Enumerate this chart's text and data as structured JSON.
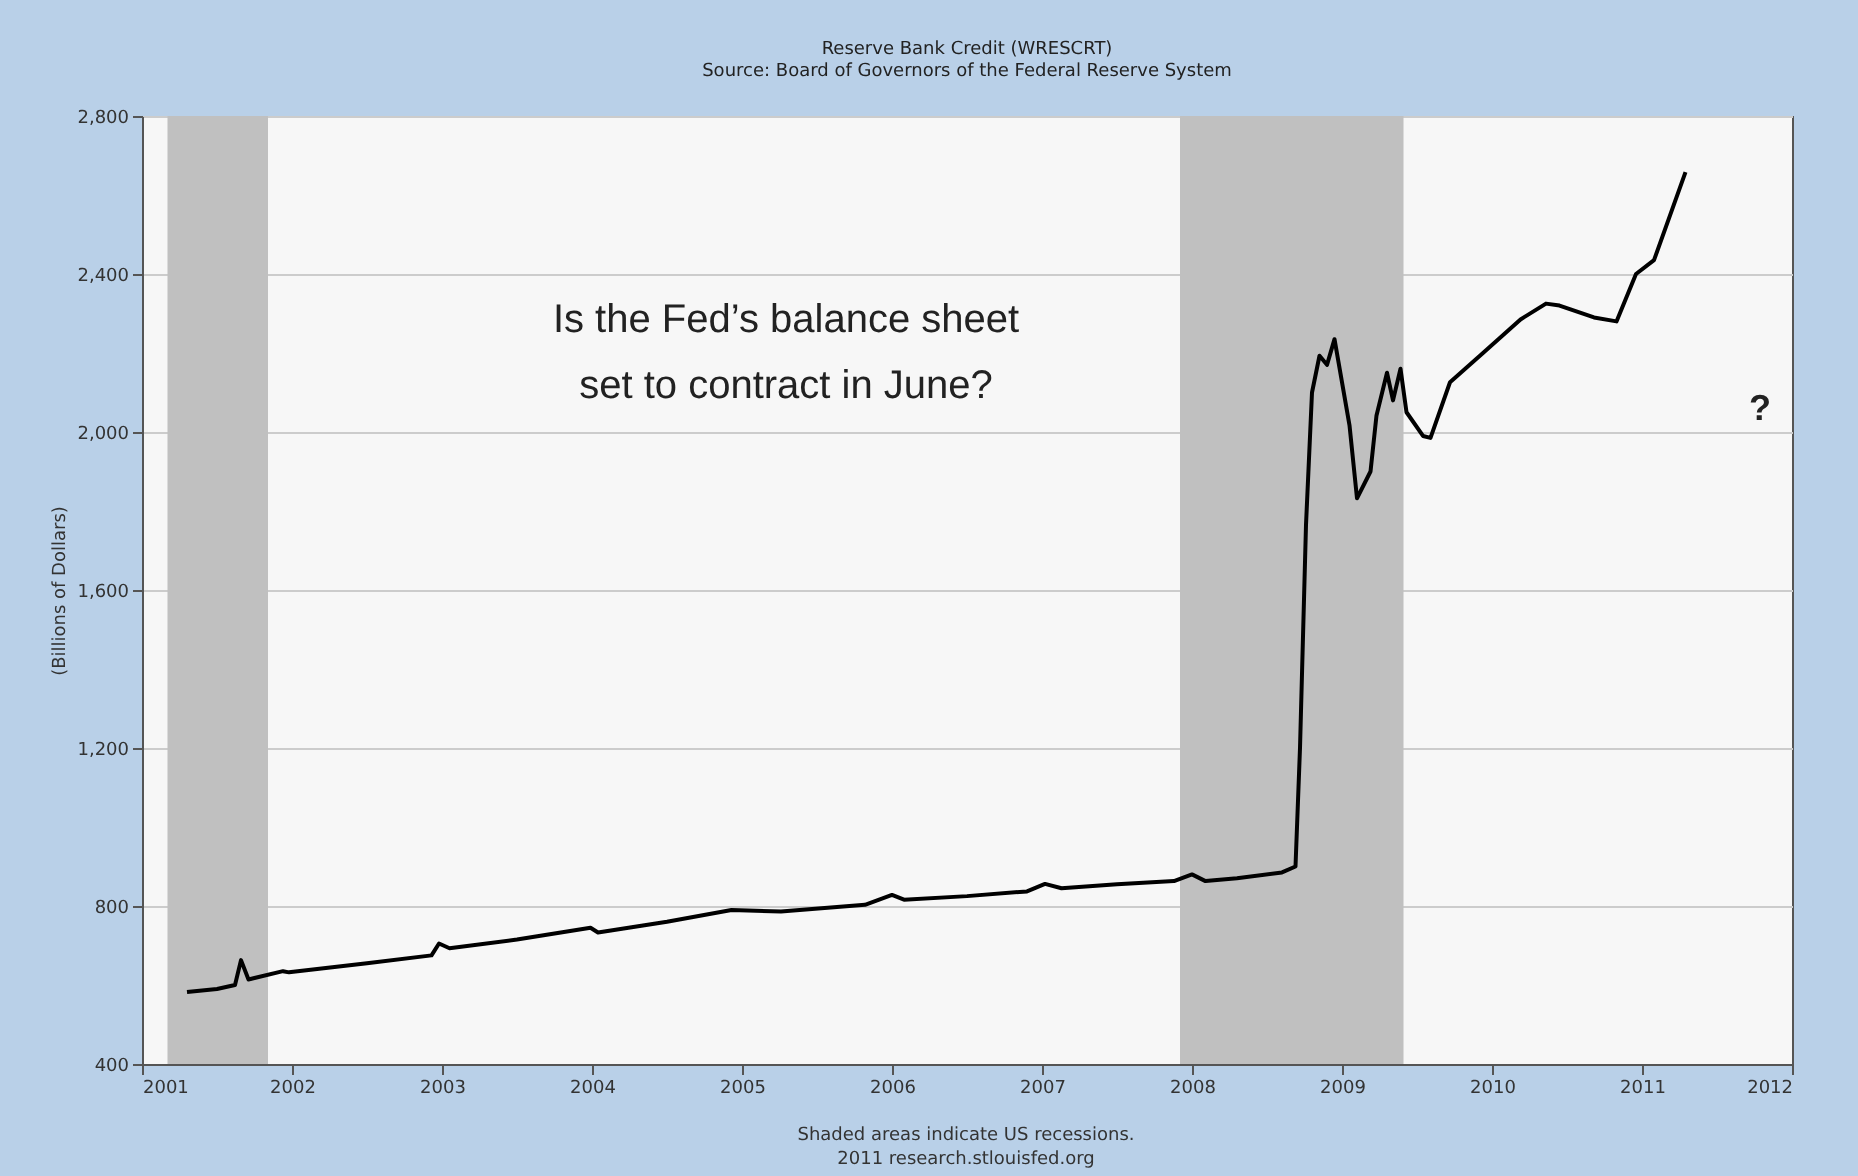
{
  "chart_data": {
    "type": "line",
    "title": "Reserve Bank Credit (WRESCRT)",
    "subtitle": "Source: Board of Governors of the Federal Reserve System",
    "ylabel": "(Billions of Dollars)",
    "x": [
      2001.3,
      2001.5,
      2001.62,
      2001.66,
      2001.71,
      2001.94,
      2001.98,
      2002.5,
      2002.93,
      2002.98,
      2003.05,
      2003.5,
      2003.99,
      2004.04,
      2004.5,
      2004.93,
      2005.26,
      2005.82,
      2006.0,
      2006.08,
      2006.5,
      2006.9,
      2007.02,
      2007.13,
      2007.5,
      2007.88,
      2008.0,
      2008.09,
      2008.3,
      2008.6,
      2008.69,
      2008.72,
      2008.76,
      2008.8,
      2008.85,
      2008.9,
      2008.95,
      2009.05,
      2009.1,
      2009.19,
      2009.23,
      2009.3,
      2009.34,
      2009.39,
      2009.43,
      2009.54,
      2009.59,
      2009.72,
      2009.94,
      2010.19,
      2010.36,
      2010.45,
      2010.68,
      2010.83,
      2010.96,
      2011.08,
      2011.29
    ],
    "values": [
      582,
      590,
      600,
      663,
      614,
      635,
      632,
      655,
      675,
      705,
      693,
      715,
      745,
      733,
      760,
      790,
      786,
      803,
      828,
      816,
      825,
      837,
      856,
      845,
      855,
      863,
      880,
      863,
      870,
      885,
      900,
      1200,
      1765,
      2100,
      2193,
      2170,
      2235,
      2017,
      1832,
      1900,
      2042,
      2150,
      2080,
      2160,
      2050,
      1990,
      1985,
      2126,
      2200,
      2285,
      2325,
      2320,
      2290,
      2280,
      2400,
      2435,
      2658
    ],
    "color": "#000000",
    "marker": "none",
    "line_style": "solid",
    "xlim": [
      2001,
      2012
    ],
    "xticks": [
      2001,
      2002,
      2003,
      2004,
      2005,
      2006,
      2007,
      2008,
      2009,
      2010,
      2011,
      2012
    ],
    "ylim": [
      400,
      2800
    ],
    "yticks": [
      {
        "value": 400,
        "label": "400"
      },
      {
        "value": 800,
        "label": "800"
      },
      {
        "value": 1200,
        "label": "1,200"
      },
      {
        "value": 1600,
        "label": "1,600"
      },
      {
        "value": 2000,
        "label": "2,000"
      },
      {
        "value": 2400,
        "label": "2,400"
      },
      {
        "value": 2800,
        "label": "2,800"
      }
    ],
    "grid": "y",
    "bands": [
      {
        "axis": "x",
        "from": 2001.17,
        "to": 2001.84,
        "color": "#c0c0c0"
      },
      {
        "axis": "x",
        "from": 2007.92,
        "to": 2009.41,
        "color": "#c0c0c0"
      }
    ],
    "annotations": [
      "Is the Fed’s balance sheet set to contract in June?",
      "?",
      "Shaded areas indicate US recessions.",
      "2011 research.stlouisfed.org"
    ]
  }
}
